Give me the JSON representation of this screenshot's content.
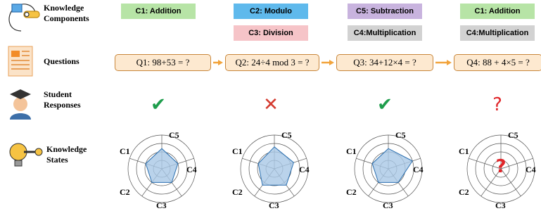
{
  "rows": [
    "Knowledge Components",
    "Questions",
    "Student Responses",
    "Knowledge States"
  ],
  "steps": [
    {
      "components": [
        "C1: Addition"
      ],
      "question": "Q1: 98+53 = ?",
      "response": "✔"
    },
    {
      "components": [
        "C2: Modulo",
        "C3: Division"
      ],
      "question": "Q2: 24÷4 mod 3 = ?",
      "response": "✕"
    },
    {
      "components": [
        "C5: Subtraction",
        "C4:Multiplication"
      ],
      "question": "Q3: 34+12×4 = ?",
      "response": "✔"
    },
    {
      "components": [
        "C1: Addition",
        "C4:Multiplication"
      ],
      "question": "Q4: 88 + 4×5 = ?",
      "response": "?"
    }
  ],
  "radar_labels": [
    "C1",
    "C2",
    "C3",
    "C4",
    "C5"
  ],
  "unknown_state": "?"
}
